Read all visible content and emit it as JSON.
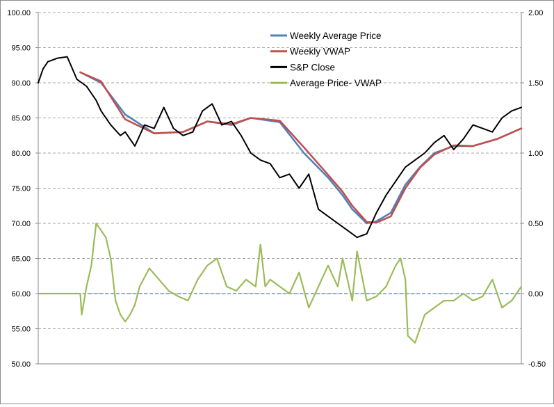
{
  "chart_data": {
    "type": "line",
    "title": "",
    "xlabel": "",
    "ylabel": "",
    "ylim": [
      50,
      100
    ],
    "y2lim": [
      -0.5,
      2.0
    ],
    "grid": true,
    "legend_position": "top-right",
    "y_ticks": [
      "50.00",
      "55.00",
      "60.00",
      "65.00",
      "70.00",
      "75.00",
      "80.00",
      "85.00",
      "90.00",
      "95.00",
      "100.00"
    ],
    "y2_ticks": [
      "-0.50",
      "0.00",
      "0.50",
      "1.00",
      "1.50",
      "2.00"
    ],
    "x_index_range": [
      0,
      1
    ],
    "series": [
      {
        "name": "Weekly Average Price",
        "axis": "left",
        "color": "#4f81bd",
        "x": [
          0.087,
          0.13,
          0.18,
          0.24,
          0.3,
          0.35,
          0.4,
          0.44,
          0.5,
          0.55,
          0.6,
          0.63,
          0.65,
          0.68,
          0.7,
          0.73,
          0.76,
          0.79,
          0.82,
          0.86,
          0.9,
          0.95,
          1.0
        ],
        "values": [
          91.5,
          90.0,
          85.5,
          82.8,
          83.0,
          84.5,
          84.0,
          85.0,
          84.4,
          80.0,
          76.5,
          74.0,
          72.0,
          70.0,
          70.3,
          71.5,
          75.5,
          78.0,
          80.0,
          81.0,
          81.0,
          82.0,
          83.5
        ]
      },
      {
        "name": "Weekly VWAP",
        "axis": "left",
        "color": "#c0504d",
        "x": [
          0.087,
          0.13,
          0.18,
          0.24,
          0.3,
          0.35,
          0.4,
          0.44,
          0.5,
          0.55,
          0.6,
          0.63,
          0.65,
          0.68,
          0.7,
          0.73,
          0.76,
          0.79,
          0.82,
          0.86,
          0.9,
          0.95,
          1.0
        ],
        "values": [
          91.5,
          90.2,
          84.8,
          82.8,
          83.0,
          84.5,
          84.1,
          85.0,
          84.6,
          80.8,
          76.9,
          74.5,
          72.5,
          70.2,
          70.1,
          71.0,
          75.0,
          77.9,
          79.8,
          81.1,
          81.0,
          82.0,
          83.5
        ]
      },
      {
        "name": "S&P Close",
        "axis": "left",
        "color": "#000000",
        "x": [
          0.0,
          0.01,
          0.02,
          0.04,
          0.06,
          0.08,
          0.1,
          0.12,
          0.13,
          0.15,
          0.17,
          0.18,
          0.2,
          0.22,
          0.24,
          0.26,
          0.28,
          0.3,
          0.32,
          0.34,
          0.36,
          0.38,
          0.4,
          0.42,
          0.44,
          0.46,
          0.48,
          0.5,
          0.52,
          0.54,
          0.56,
          0.58,
          0.6,
          0.62,
          0.64,
          0.66,
          0.68,
          0.7,
          0.72,
          0.74,
          0.76,
          0.78,
          0.8,
          0.82,
          0.84,
          0.86,
          0.88,
          0.9,
          0.92,
          0.94,
          0.96,
          0.98,
          1.0
        ],
        "values": [
          90.0,
          92.0,
          93.0,
          93.5,
          93.7,
          90.5,
          89.5,
          87.5,
          86.0,
          84.0,
          82.5,
          83.0,
          81.0,
          84.0,
          83.5,
          86.5,
          83.5,
          82.5,
          83.0,
          86.0,
          87.0,
          84.0,
          84.5,
          82.5,
          80.0,
          79.0,
          78.5,
          76.5,
          77.0,
          75.0,
          77.0,
          72.0,
          71.0,
          70.0,
          69.0,
          68.0,
          68.5,
          71.5,
          74.0,
          76.0,
          78.0,
          79.0,
          80.0,
          81.5,
          82.5,
          80.5,
          82.0,
          84.0,
          83.5,
          83.0,
          85.0,
          86.0,
          86.5
        ]
      },
      {
        "name": "Average Price- VWAP",
        "axis": "right",
        "color": "#9bbb59",
        "x": [
          0.0,
          0.087,
          0.09,
          0.1,
          0.11,
          0.12,
          0.13,
          0.14,
          0.15,
          0.16,
          0.17,
          0.18,
          0.19,
          0.2,
          0.21,
          0.23,
          0.25,
          0.27,
          0.29,
          0.31,
          0.33,
          0.35,
          0.37,
          0.39,
          0.41,
          0.43,
          0.45,
          0.46,
          0.47,
          0.48,
          0.5,
          0.52,
          0.54,
          0.56,
          0.58,
          0.6,
          0.62,
          0.63,
          0.65,
          0.66,
          0.68,
          0.7,
          0.72,
          0.74,
          0.75,
          0.76,
          0.765,
          0.78,
          0.8,
          0.82,
          0.84,
          0.86,
          0.88,
          0.9,
          0.92,
          0.94,
          0.96,
          0.98,
          1.0
        ],
        "values": [
          0.0,
          0.0,
          -0.15,
          0.05,
          0.2,
          0.5,
          0.45,
          0.4,
          0.25,
          -0.05,
          -0.15,
          -0.2,
          -0.15,
          -0.08,
          0.05,
          0.18,
          0.1,
          0.02,
          -0.02,
          -0.05,
          0.1,
          0.2,
          0.25,
          0.05,
          0.02,
          0.1,
          0.05,
          0.35,
          0.05,
          0.1,
          0.05,
          0.0,
          0.15,
          -0.1,
          0.05,
          0.2,
          0.05,
          0.25,
          -0.05,
          0.3,
          -0.05,
          -0.02,
          0.05,
          0.2,
          0.25,
          0.1,
          -0.3,
          -0.35,
          -0.15,
          -0.1,
          -0.05,
          -0.05,
          0.0,
          -0.05,
          -0.02,
          0.1,
          -0.1,
          -0.05,
          0.05
        ]
      }
    ],
    "reference_lines": [
      {
        "axis": "right",
        "value": 0.0,
        "color": "#4f81bd",
        "style": "dashed"
      }
    ]
  }
}
